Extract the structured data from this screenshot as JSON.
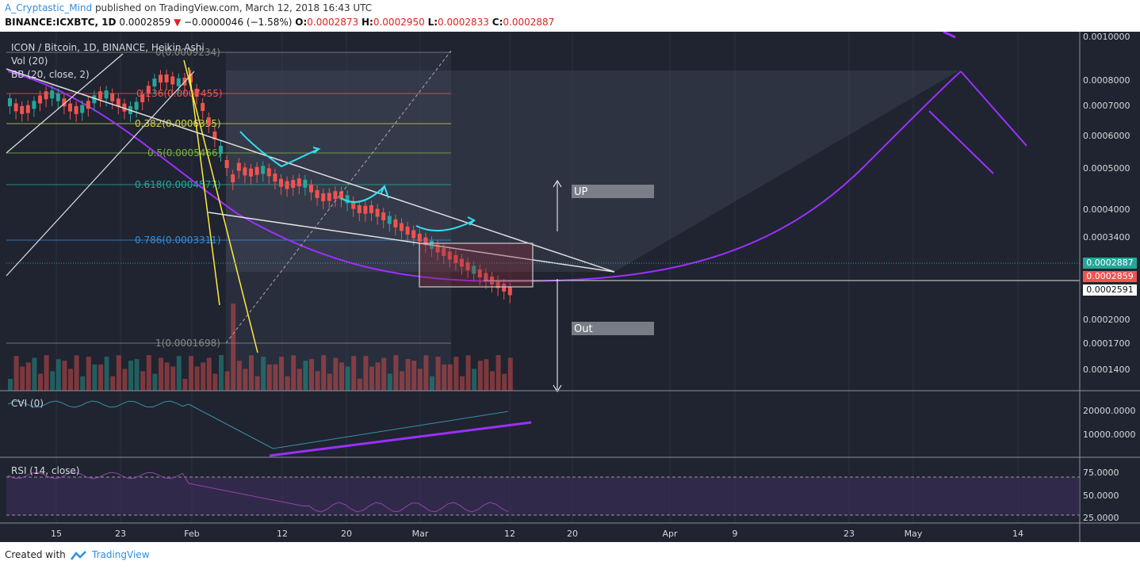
{
  "header": {
    "author": "A_Cryptastic_Mind",
    "published": "published on TradingView.com, March 12, 2018 16:43 UTC",
    "symbol": "BINANCE:ICXBTC, 1D",
    "last": "0.0002859",
    "change": "−0.0000046 (−1.58%)",
    "o_label": "O:",
    "o": "0.0002873",
    "h_label": "H:",
    "h": "0.0002950",
    "l_label": "L:",
    "l": "0.0002833",
    "c_label": "C:",
    "c": "0.0002887"
  },
  "legend": {
    "main": "ICON / Bitcoin, 1D, BINANCE, Heikin Ashi",
    "vol": "Vol (20)",
    "bb": "BB (20, close, 2)",
    "cvi": "CVI (0)",
    "rsi": "RSI (14, close)"
  },
  "price_axis": [
    "0.0010000",
    "0.0008000",
    "0.0007000",
    "0.0006000",
    "0.0005000",
    "0.0004000",
    "0.0003400",
    "0.0002000",
    "0.0001700",
    "0.0001400"
  ],
  "price_badges": {
    "close": "0.0002887",
    "last": "0.0002859",
    "line": "0.0002591"
  },
  "cvi_axis": [
    "20000.0000",
    "10000.0000"
  ],
  "rsi_axis": [
    "75.0000",
    "50.0000",
    "25.0000"
  ],
  "time_axis": [
    "15",
    "23",
    "Feb",
    "12",
    "20",
    "Mar",
    "12",
    "20",
    "Apr",
    "9",
    "23",
    "May",
    "14"
  ],
  "fib_labels": [
    "0(0.0009234)",
    "0.236(0.0007455)",
    "0.382(0.0006355)",
    "0.5(0.0005466)",
    "0.618(0.0004577)",
    "0.786(0.0003311)",
    "1(0.0001698)"
  ],
  "annotations": {
    "up": "UP",
    "out": "Out"
  },
  "footer": {
    "created": "Created with",
    "brand": "TradingView"
  },
  "colors": {
    "bg": "#1f2430",
    "up": "#26a69a",
    "down": "#ef5350",
    "fib_band": "#2a3240",
    "cup": "#9b30ff",
    "accent": "#2f8ee0"
  }
}
